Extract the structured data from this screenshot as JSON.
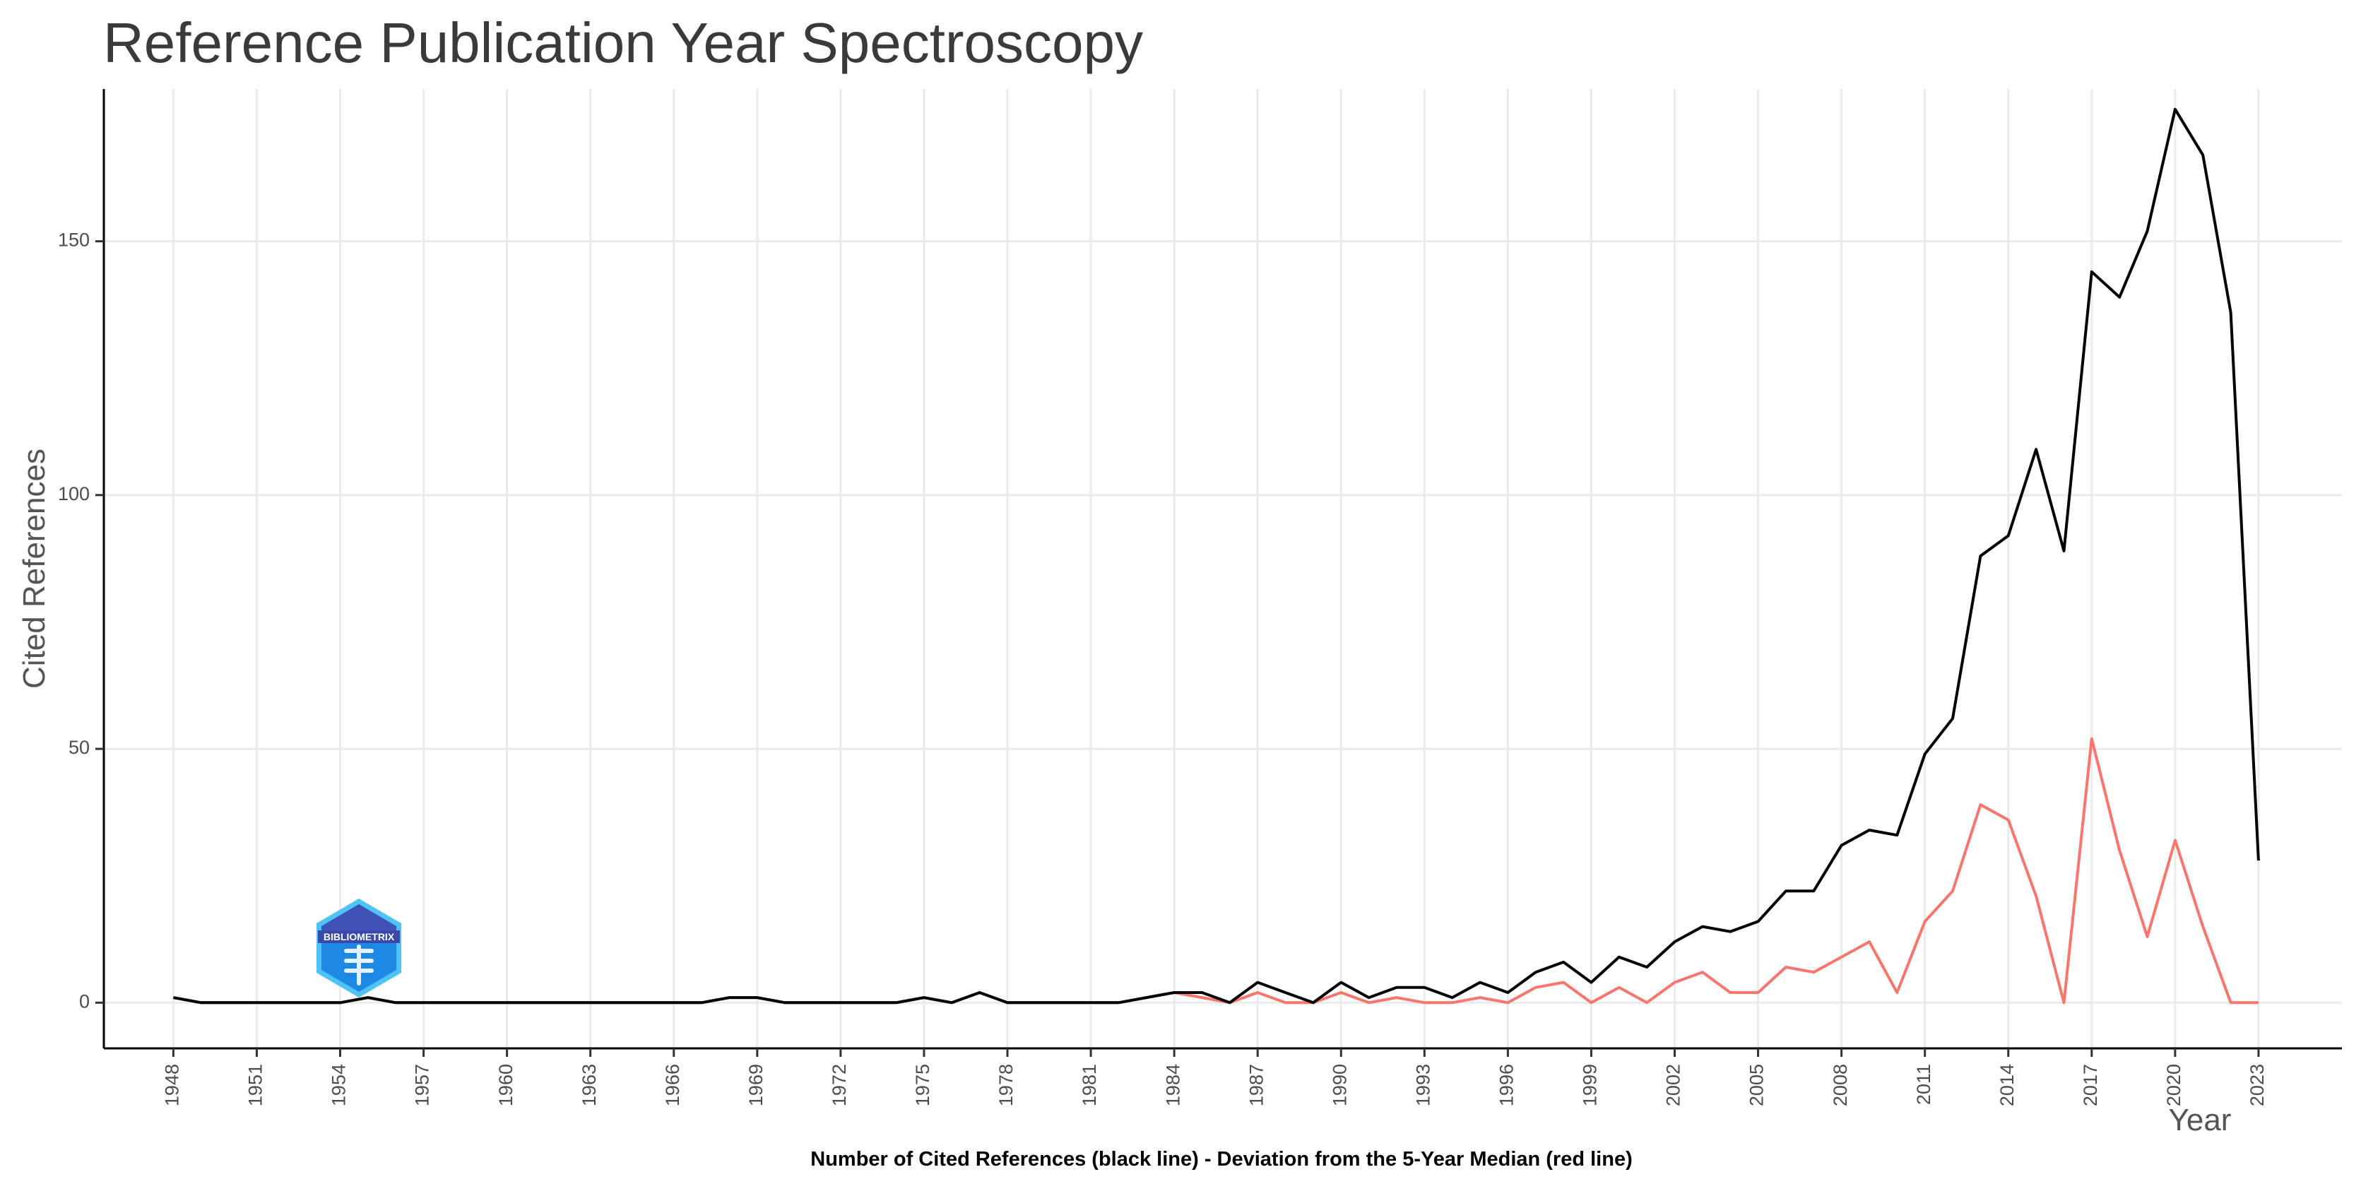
{
  "chart_data": {
    "type": "line",
    "title": "Reference Publication Year Spectroscopy",
    "xlabel": "Year",
    "ylabel": "Cited References",
    "caption": "Number of Cited References (black line) - Deviation from the 5-Year Median (red line)",
    "xlim": [
      1945.5,
      2026
    ],
    "ylim": [
      -9,
      180
    ],
    "x_ticks": [
      1948,
      1951,
      1954,
      1957,
      1960,
      1963,
      1966,
      1969,
      1972,
      1975,
      1978,
      1981,
      1984,
      1987,
      1990,
      1993,
      1996,
      1999,
      2002,
      2005,
      2008,
      2011,
      2014,
      2017,
      2020,
      2023
    ],
    "y_ticks": [
      0,
      50,
      100,
      150
    ],
    "grid": true,
    "series": [
      {
        "name": "Number of Cited References",
        "color": "#000000",
        "x": [
          1948,
          1949,
          1950,
          1951,
          1952,
          1953,
          1954,
          1955,
          1956,
          1957,
          1958,
          1959,
          1960,
          1961,
          1962,
          1963,
          1964,
          1965,
          1966,
          1967,
          1968,
          1969,
          1970,
          1971,
          1972,
          1973,
          1974,
          1975,
          1976,
          1977,
          1978,
          1979,
          1980,
          1981,
          1982,
          1983,
          1984,
          1985,
          1986,
          1987,
          1988,
          1989,
          1990,
          1991,
          1992,
          1993,
          1994,
          1995,
          1996,
          1997,
          1998,
          1999,
          2000,
          2001,
          2002,
          2003,
          2004,
          2005,
          2006,
          2007,
          2008,
          2009,
          2010,
          2011,
          2012,
          2013,
          2014,
          2015,
          2016,
          2017,
          2018,
          2019,
          2020,
          2021,
          2022,
          2023
        ],
        "values": [
          1,
          0,
          0,
          0,
          0,
          0,
          0,
          1,
          0,
          0,
          0,
          0,
          0,
          0,
          0,
          0,
          0,
          0,
          0,
          0,
          1,
          1,
          0,
          0,
          0,
          0,
          0,
          1,
          0,
          2,
          0,
          0,
          0,
          0,
          0,
          1,
          2,
          2,
          0,
          4,
          2,
          0,
          4,
          1,
          3,
          3,
          1,
          4,
          2,
          6,
          8,
          4,
          9,
          7,
          12,
          15,
          14,
          16,
          22,
          22,
          31,
          34,
          33,
          49,
          56,
          88,
          92,
          109,
          89,
          144,
          139,
          152,
          176,
          167,
          136,
          28
        ]
      },
      {
        "name": "Deviation from the 5-Year Median",
        "color": "#f8766d",
        "x": [
          1948,
          1949,
          1950,
          1951,
          1952,
          1953,
          1954,
          1955,
          1956,
          1957,
          1958,
          1959,
          1960,
          1961,
          1962,
          1963,
          1964,
          1965,
          1966,
          1967,
          1968,
          1969,
          1970,
          1971,
          1972,
          1973,
          1974,
          1975,
          1976,
          1977,
          1978,
          1979,
          1980,
          1981,
          1982,
          1983,
          1984,
          1985,
          1986,
          1987,
          1988,
          1989,
          1990,
          1991,
          1992,
          1993,
          1994,
          1995,
          1996,
          1997,
          1998,
          1999,
          2000,
          2001,
          2002,
          2003,
          2004,
          2005,
          2006,
          2007,
          2008,
          2009,
          2010,
          2011,
          2012,
          2013,
          2014,
          2015,
          2016,
          2017,
          2018,
          2019,
          2020,
          2021,
          2022,
          2023
        ],
        "values": [
          1,
          0,
          0,
          0,
          0,
          0,
          0,
          1,
          0,
          0,
          0,
          0,
          0,
          0,
          0,
          0,
          0,
          0,
          0,
          0,
          1,
          1,
          0,
          0,
          0,
          0,
          0,
          1,
          0,
          2,
          0,
          0,
          0,
          0,
          0,
          1,
          2,
          1,
          0,
          2,
          0,
          0,
          2,
          0,
          1,
          0,
          0,
          1,
          0,
          3,
          4,
          0,
          3,
          0,
          4,
          6,
          2,
          2,
          7,
          6,
          9,
          12,
          2,
          16,
          22,
          39,
          36,
          21,
          0,
          52,
          30,
          13,
          32,
          15,
          0,
          0
        ]
      }
    ]
  },
  "logo": {
    "label": "BIBLIOMETRIX"
  }
}
